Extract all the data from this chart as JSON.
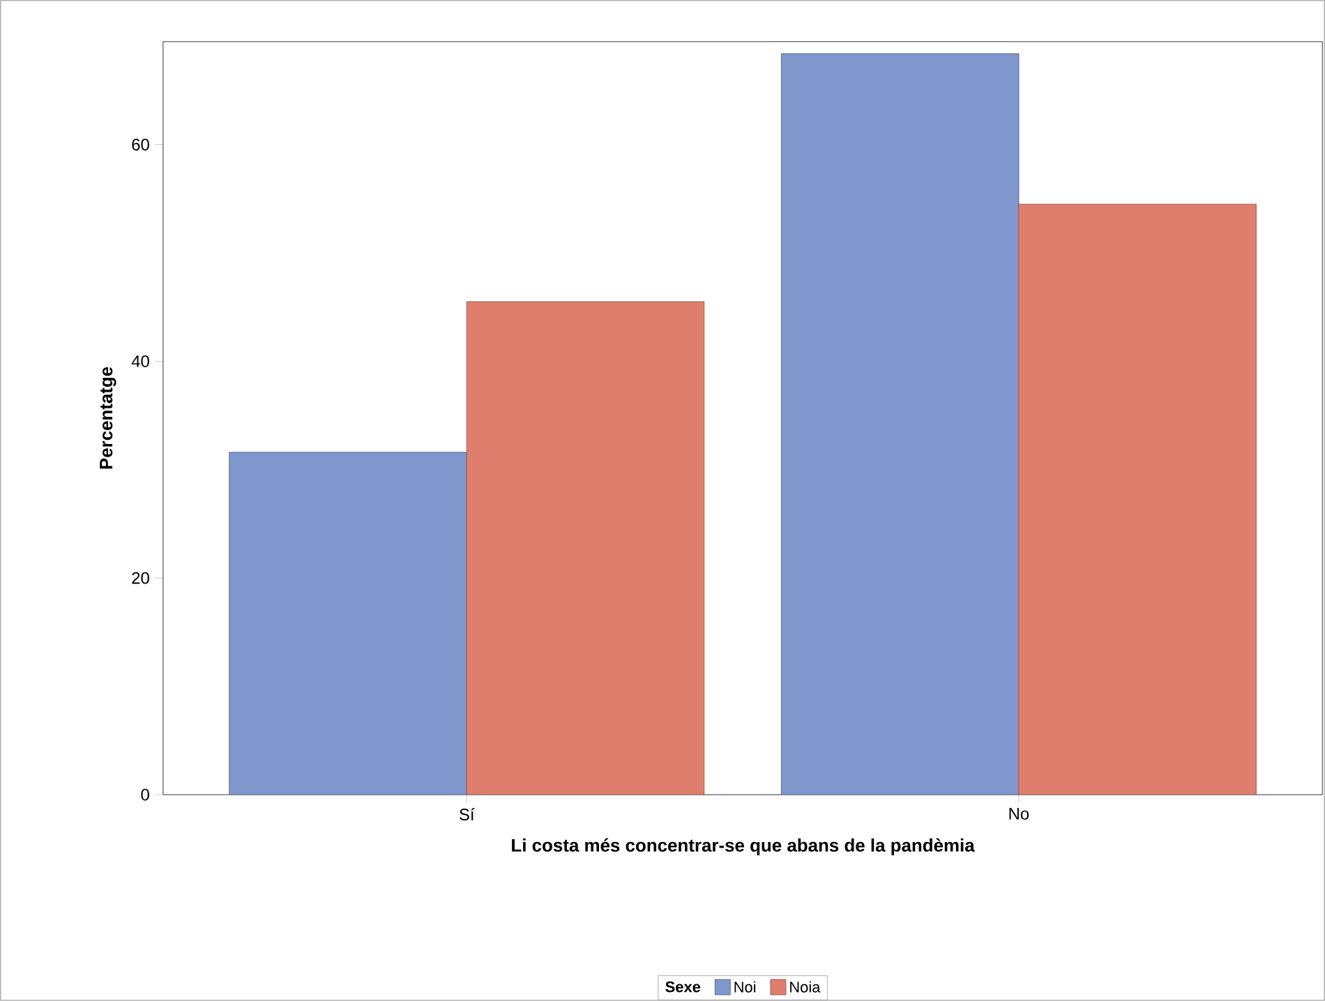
{
  "chart_data": {
    "type": "bar",
    "xlabel": "Li costa més concentrar-se que abans de la pandèmia",
    "ylabel": "Percentatge",
    "legend_title": "Sexe",
    "categories": [
      "Sí",
      "No"
    ],
    "series": [
      {
        "name": "Noi",
        "color": "#7f97cd",
        "values": [
          31.6,
          68.4
        ]
      },
      {
        "name": "Noia",
        "color": "#e07e6e",
        "values": [
          45.5,
          54.5
        ]
      }
    ],
    "ylim": [
      0,
      69.5
    ],
    "yticks": [
      0,
      20,
      40,
      60
    ],
    "grid": false,
    "legend": "bottom"
  }
}
